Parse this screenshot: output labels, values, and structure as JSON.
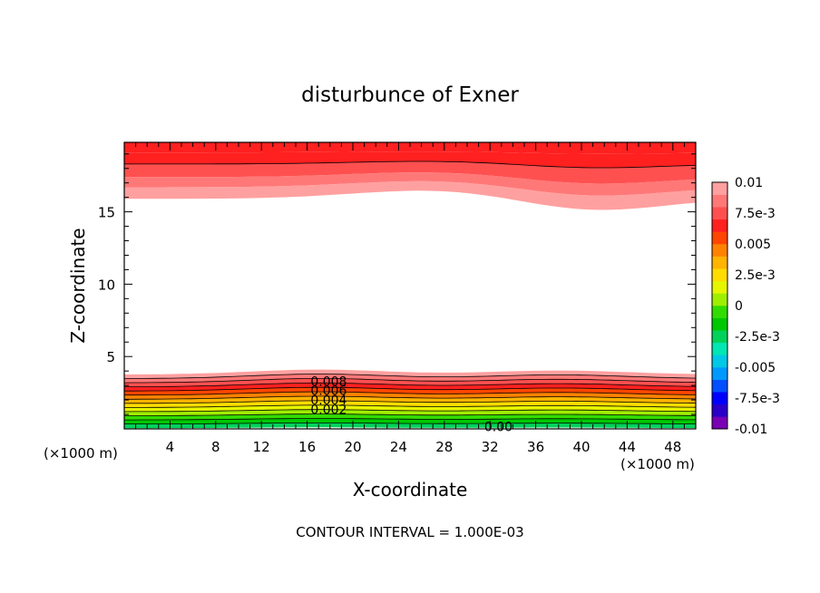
{
  "chart_data": {
    "type": "contour",
    "title": "disturbunce of Exner",
    "xlabel": "X-coordinate",
    "ylabel": "Z-coordinate",
    "x_unit_note": "(×1000 m)",
    "xlim": [
      0,
      50
    ],
    "ylim": [
      0,
      19.8
    ],
    "x_ticks": [
      "4",
      "8",
      "12",
      "16",
      "20",
      "24",
      "28",
      "32",
      "36",
      "40",
      "44",
      "48"
    ],
    "y_ticks": [
      "5",
      "10",
      "15"
    ],
    "contour_interval_text": "CONTOUR INTERVAL = 1.000E-03",
    "contour_labels": [
      "0.008",
      "0.006",
      "0.004",
      "0.002",
      "0.00"
    ],
    "colorbar": {
      "range": [
        -0.01,
        0.01
      ],
      "tick_labels": [
        "0.01",
        "7.5e-3",
        "0.005",
        "2.5e-3",
        "0",
        "-2.5e-3",
        "-0.005",
        "-7.5e-3",
        "-0.01"
      ],
      "colors": [
        "#7a00b4",
        "#2a00c8",
        "#0000ff",
        "#0050ff",
        "#0099ff",
        "#00c8e6",
        "#00e6b4",
        "#00d25a",
        "#00c800",
        "#32dc00",
        "#a0ee00",
        "#e6f500",
        "#ffdc00",
        "#ffb400",
        "#ff8200",
        "#ff4600",
        "#ff2020",
        "#ff5050",
        "#ff7878",
        "#ffa0a0"
      ]
    },
    "notes": {
      "upper_layer": "positive values 0.006–0.01 above ~15–16 km, wavy with trough near x=40",
      "lower_layer": "values 0–0.008 below ~4 km, bulging near x=16 and x=38"
    }
  }
}
